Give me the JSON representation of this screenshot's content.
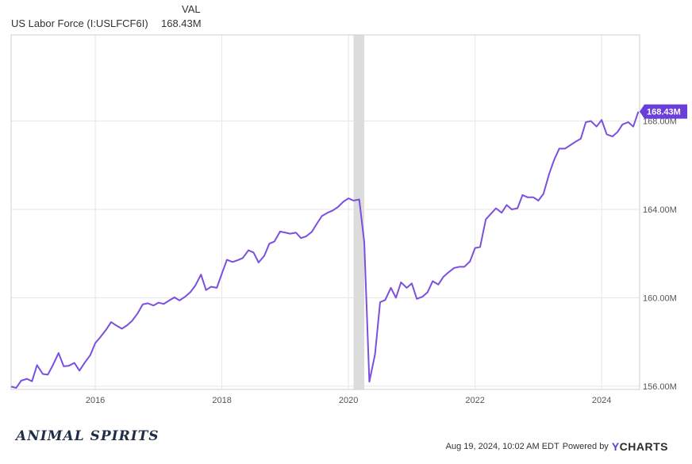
{
  "header": {
    "column_label": "VAL",
    "series_name": "US Labor Force (I:USLFCF6I)",
    "series_value": "168.43M"
  },
  "footer": {
    "brand": "ANIMAL SPIRITS",
    "timestamp": "Aug 19, 2024, 10:02 AM EDT",
    "powered_by": "Powered by",
    "logo_y": "Y",
    "logo_rest": "CHARTS"
  },
  "colors": {
    "line": "#7b4fe0",
    "badge": "#6a3fd9",
    "recession_band": "#dcdcdc",
    "grid": "#e6e6e6"
  },
  "chart_data": {
    "type": "line",
    "title": "",
    "xlabel": "",
    "ylabel": "",
    "x_ticks": [
      "2016",
      "2018",
      "2020",
      "2022",
      "2024"
    ],
    "y_ticks": [
      "156.00M",
      "160.00M",
      "164.00M",
      "168.00M"
    ],
    "xlim": [
      2014.67,
      2024.6
    ],
    "ylim": [
      155.85,
      171.9
    ],
    "grid": true,
    "last_value_label": "168.43M",
    "shaded_period": {
      "label": "2020 recession",
      "start": 2020.08,
      "end": 2020.25
    },
    "series": [
      {
        "values_x": [
          2014.67,
          2014.75,
          2014.83,
          2014.92,
          2015.0,
          2015.08,
          2015.17,
          2015.25,
          2015.33,
          2015.42,
          2015.5,
          2015.58,
          2015.67,
          2015.75,
          2015.83,
          2015.92,
          2016.0,
          2016.08,
          2016.17,
          2016.25,
          2016.33,
          2016.42,
          2016.5,
          2016.58,
          2016.67,
          2016.75,
          2016.83,
          2016.92,
          2017.0,
          2017.08,
          2017.17,
          2017.25,
          2017.33,
          2017.42,
          2017.5,
          2017.58,
          2017.67,
          2017.75,
          2017.83,
          2017.92,
          2018.0,
          2018.08,
          2018.17,
          2018.25,
          2018.33,
          2018.42,
          2018.5,
          2018.58,
          2018.67,
          2018.75,
          2018.83,
          2018.92,
          2019.0,
          2019.08,
          2019.17,
          2019.25,
          2019.33,
          2019.42,
          2019.5,
          2019.58,
          2019.67,
          2019.75,
          2019.83,
          2019.92,
          2020.0,
          2020.08,
          2020.17,
          2020.25,
          2020.33,
          2020.42,
          2020.5,
          2020.58,
          2020.67,
          2020.75,
          2020.83,
          2020.92,
          2021.0,
          2021.08,
          2021.17,
          2021.25,
          2021.33,
          2021.42,
          2021.5,
          2021.58,
          2021.67,
          2021.75,
          2021.83,
          2021.92,
          2022.0,
          2022.08,
          2022.17,
          2022.25,
          2022.33,
          2022.42,
          2022.5,
          2022.58,
          2022.67,
          2022.75,
          2022.83,
          2022.92,
          2023.0,
          2023.08,
          2023.17,
          2023.25,
          2023.33,
          2023.42,
          2023.5,
          2023.58,
          2023.67,
          2023.75,
          2023.83,
          2023.92,
          2024.0,
          2024.08,
          2024.17,
          2024.25,
          2024.33,
          2024.42,
          2024.5,
          2024.58
        ],
        "values": [
          155.98,
          155.92,
          156.25,
          156.33,
          156.22,
          156.95,
          156.55,
          156.52,
          156.95,
          157.5,
          156.9,
          156.92,
          157.05,
          156.7,
          157.05,
          157.4,
          157.95,
          158.22,
          158.55,
          158.9,
          158.75,
          158.6,
          158.75,
          158.95,
          159.3,
          159.7,
          159.75,
          159.65,
          159.78,
          159.72,
          159.88,
          160.02,
          159.88,
          160.05,
          160.25,
          160.55,
          161.05,
          160.35,
          160.5,
          160.45,
          161.1,
          161.72,
          161.62,
          161.7,
          161.8,
          162.15,
          162.05,
          161.6,
          161.9,
          162.45,
          162.55,
          163.0,
          162.95,
          162.9,
          162.95,
          162.7,
          162.78,
          162.98,
          163.35,
          163.7,
          163.85,
          163.95,
          164.1,
          164.35,
          164.5,
          164.4,
          164.45,
          162.5,
          156.2,
          157.45,
          159.8,
          159.9,
          160.45,
          160.0,
          160.7,
          160.45,
          160.65,
          159.95,
          160.05,
          160.25,
          160.75,
          160.6,
          160.95,
          161.15,
          161.35,
          161.4,
          161.4,
          161.65,
          162.25,
          162.3,
          163.55,
          163.8,
          164.05,
          163.85,
          164.2,
          164.0,
          164.05,
          164.65,
          164.55,
          164.55,
          164.4,
          164.7,
          165.6,
          166.25,
          166.75,
          166.75,
          166.9,
          167.05,
          167.2,
          167.95,
          168.0,
          167.75,
          168.05,
          167.4,
          167.3,
          167.5,
          167.85,
          167.95,
          167.75,
          168.43
        ]
      }
    ]
  }
}
